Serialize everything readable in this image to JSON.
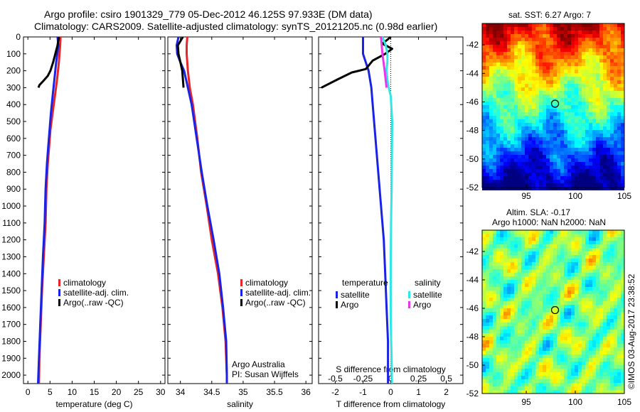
{
  "header": {
    "line1": "Argo profile: csiro 1901329_779 05-Dec-2012 46.125S 97.933E (DM data)",
    "line2": "Climatology: CARS2009. Satellite-adjusted climatology: synTS_20121205.nc (0.98d earlier)"
  },
  "map_top": {
    "title": "sat. SST: 6.27 Argo: 7"
  },
  "map_bottom": {
    "title1": "Altim. SLA: -0.17",
    "title2": "Argo h1000: NaN h2000: NaN"
  },
  "attribution": "©IMOS 03-Aug-2017 23:38:52",
  "credit": {
    "line1": "Argo Australia",
    "line2": "PI: Susan Wijffels"
  },
  "colors": {
    "climatology": "#e8262a",
    "satellite": "#1a22e6",
    "argo": "#000000",
    "salinity_satellite": "#33e6e6",
    "salinity_argo": "#ee33ee"
  },
  "chart_data": [
    {
      "type": "line",
      "xlabel": "temperature (deg C)",
      "xlim": [
        -1,
        31
      ],
      "xticks": [
        "0",
        "5",
        "10",
        "15",
        "20",
        "25",
        "30"
      ],
      "ylim": [
        0,
        2050
      ],
      "yticks": [
        "0",
        "100",
        "200",
        "300",
        "400",
        "500",
        "600",
        "700",
        "800",
        "900",
        "1000",
        "1100",
        "1200",
        "1300",
        "1400",
        "1500",
        "1600",
        "1700",
        "1800",
        "1900",
        "2000"
      ],
      "legend": [
        "climatology",
        "satellite-adj. clim.",
        "Argo(..raw -QC)"
      ],
      "series": [
        {
          "name": "climatology",
          "points": [
            [
              7.4,
              0
            ],
            [
              7.3,
              50
            ],
            [
              7.0,
              150
            ],
            [
              6.6,
              250
            ],
            [
              6.1,
              350
            ],
            [
              5.6,
              450
            ],
            [
              5.1,
              550
            ],
            [
              4.8,
              650
            ],
            [
              4.5,
              750
            ],
            [
              4.2,
              900
            ],
            [
              4.0,
              1100
            ],
            [
              3.6,
              1300
            ],
            [
              3.2,
              1500
            ],
            [
              2.9,
              1700
            ],
            [
              2.6,
              1900
            ],
            [
              2.5,
              2050
            ]
          ]
        },
        {
          "name": "satellite-adj. clim.",
          "points": [
            [
              6.7,
              0
            ],
            [
              6.9,
              50
            ],
            [
              6.4,
              150
            ],
            [
              6.0,
              250
            ],
            [
              5.6,
              350
            ],
            [
              5.2,
              450
            ],
            [
              4.9,
              550
            ],
            [
              4.6,
              650
            ],
            [
              4.3,
              750
            ],
            [
              4.0,
              900
            ],
            [
              3.8,
              1100
            ],
            [
              3.4,
              1300
            ],
            [
              3.1,
              1500
            ],
            [
              2.8,
              1700
            ],
            [
              2.5,
              1900
            ],
            [
              2.3,
              2050
            ]
          ]
        },
        {
          "name": "Argo(..raw -QC)",
          "points": [
            [
              7.0,
              0
            ],
            [
              6.7,
              50
            ],
            [
              6.2,
              100
            ],
            [
              5.7,
              150
            ],
            [
              5.1,
              200
            ],
            [
              4.5,
              230
            ],
            [
              3.5,
              260
            ],
            [
              2.6,
              285
            ],
            [
              2.4,
              300
            ]
          ]
        }
      ]
    },
    {
      "type": "line",
      "xlabel": "salinity",
      "xlim": [
        33.8,
        36.1
      ],
      "xticks": [
        "34",
        "34.5",
        "35",
        "35.5",
        "36"
      ],
      "ylim": [
        0,
        2050
      ],
      "legend": [
        "climatology",
        "satellite-adj. clim.",
        "Argo(..raw -QC)"
      ],
      "series": [
        {
          "name": "climatology",
          "points": [
            [
              34.11,
              0
            ],
            [
              34.1,
              50
            ],
            [
              34.1,
              100
            ],
            [
              34.12,
              200
            ],
            [
              34.15,
              300
            ],
            [
              34.2,
              400
            ],
            [
              34.27,
              600
            ],
            [
              34.33,
              800
            ],
            [
              34.42,
              1000
            ],
            [
              34.5,
              1200
            ],
            [
              34.6,
              1400
            ],
            [
              34.67,
              1600
            ],
            [
              34.72,
              1800
            ],
            [
              34.74,
              2000
            ],
            [
              34.74,
              2050
            ]
          ]
        },
        {
          "name": "satellite-adj. clim.",
          "points": [
            [
              33.97,
              0
            ],
            [
              33.94,
              50
            ],
            [
              33.95,
              100
            ],
            [
              34.0,
              150
            ],
            [
              34.06,
              200
            ],
            [
              34.12,
              300
            ],
            [
              34.18,
              400
            ],
            [
              34.26,
              600
            ],
            [
              34.34,
              800
            ],
            [
              34.43,
              1000
            ],
            [
              34.53,
              1200
            ],
            [
              34.62,
              1400
            ],
            [
              34.68,
              1600
            ],
            [
              34.73,
              1800
            ],
            [
              34.74,
              2000
            ],
            [
              34.74,
              2050
            ]
          ]
        },
        {
          "name": "Argo(..raw -QC)",
          "points": [
            [
              34.04,
              0
            ],
            [
              33.96,
              50
            ],
            [
              33.97,
              100
            ],
            [
              34.0,
              150
            ],
            [
              34.03,
              200
            ],
            [
              34.04,
              250
            ],
            [
              34.05,
              300
            ]
          ]
        }
      ]
    },
    {
      "type": "line",
      "xlabel": "T difference from climatology",
      "top_label": "S difference from climatology",
      "xlim": [
        -2.6,
        2.6
      ],
      "xticks": [
        "-2",
        "-1",
        "0",
        "1",
        "2"
      ],
      "top_ticks": [
        "-0.5",
        "-0.25",
        "0",
        "0.25",
        "0.5"
      ],
      "ylim": [
        0,
        2050
      ],
      "legend_headers": [
        "temperature",
        "salinity"
      ],
      "legend": [
        "satellite",
        "Argo",
        "satellite",
        "Argo"
      ],
      "series": [
        {
          "name": "satellite",
          "points": [
            [
              -1.0,
              0
            ],
            [
              -1.0,
              100
            ],
            [
              -0.8,
              200
            ],
            [
              -0.7,
              300
            ],
            [
              -0.65,
              400
            ],
            [
              -0.55,
              600
            ],
            [
              -0.45,
              800
            ],
            [
              -0.35,
              1000
            ],
            [
              -0.25,
              1200
            ],
            [
              -0.2,
              1400
            ],
            [
              -0.15,
              1600
            ],
            [
              -0.1,
              1800
            ],
            [
              -0.1,
              2050
            ]
          ]
        },
        {
          "name": "Argo",
          "points": [
            [
              0.0,
              0
            ],
            [
              -0.3,
              40
            ],
            [
              0.05,
              70
            ],
            [
              -0.2,
              100
            ],
            [
              -0.65,
              140
            ],
            [
              -0.9,
              190
            ],
            [
              -1.4,
              210
            ],
            [
              -1.9,
              250
            ],
            [
              -2.5,
              300
            ]
          ]
        },
        {
          "name": "satellite",
          "points": [
            [
              -0.3,
              0
            ],
            [
              -0.18,
              50
            ],
            [
              -0.12,
              100
            ],
            [
              -0.12,
              150
            ],
            [
              -0.16,
              200
            ],
            [
              -0.1,
              280
            ],
            [
              0.0,
              350
            ],
            [
              0.05,
              500
            ],
            [
              0.04,
              700
            ],
            [
              0.03,
              900
            ],
            [
              0.01,
              1100
            ],
            [
              0.0,
              1300
            ],
            [
              0.0,
              1500
            ],
            [
              0.0,
              1700
            ],
            [
              0.03,
              1900
            ],
            [
              0.04,
              2050
            ]
          ]
        },
        {
          "name": "Argo",
          "points": [
            [
              -0.35,
              0
            ],
            [
              -0.3,
              100
            ],
            [
              -0.22,
              200
            ],
            [
              -0.18,
              260
            ],
            [
              -0.15,
              300
            ]
          ]
        }
      ]
    }
  ],
  "maps": {
    "xticks": [
      "95",
      "100",
      "105"
    ],
    "yticks": [
      "-42",
      "-44",
      "-46",
      "-48",
      "-50",
      "-52"
    ]
  }
}
